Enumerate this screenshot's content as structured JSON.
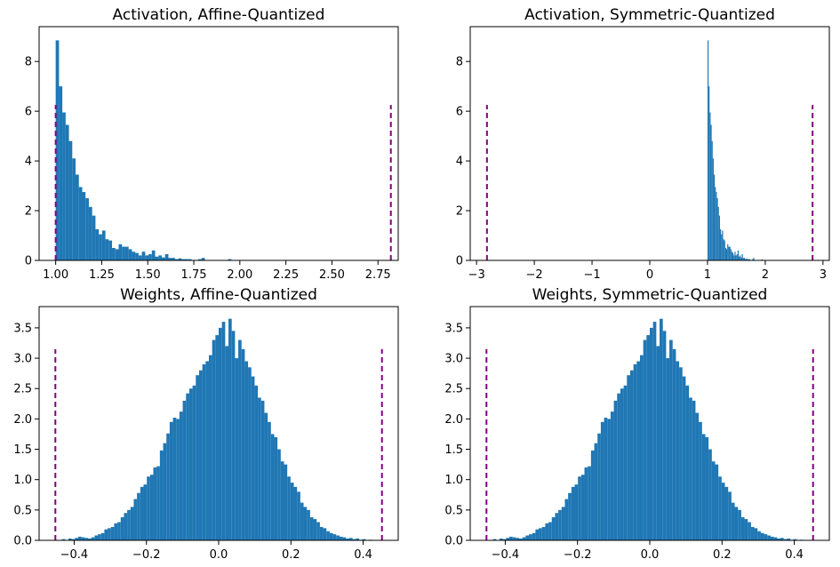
{
  "colors": {
    "bar": "#1f77b4",
    "bound": "#800080"
  },
  "chart_data": [
    {
      "type": "histogram",
      "title": "Activation, Affine-Quantized",
      "xlim": [
        0.91,
        2.86
      ],
      "ylim": [
        0,
        9.4
      ],
      "xticks": [
        1.0,
        1.25,
        1.5,
        1.75,
        2.0,
        2.25,
        2.5,
        2.75
      ],
      "xtick_labels": [
        "1.00",
        "1.25",
        "1.50",
        "1.75",
        "2.00",
        "2.25",
        "2.50",
        "2.75"
      ],
      "yticks": [
        0,
        2,
        4,
        6,
        8
      ],
      "ytick_labels": [
        "0",
        "2",
        "4",
        "6",
        "8"
      ],
      "bins": {
        "start": 1.0,
        "width": 0.018
      },
      "values": [
        8.85,
        7.0,
        5.95,
        5.45,
        4.8,
        4.1,
        3.45,
        2.95,
        2.75,
        2.5,
        2.15,
        1.8,
        1.25,
        1.05,
        1.2,
        0.85,
        0.8,
        0.5,
        0.45,
        0.65,
        0.55,
        0.55,
        0.45,
        0.35,
        0.3,
        0.2,
        0.35,
        0.2,
        0.25,
        0.4,
        0.15,
        0.2,
        0.12,
        0.25,
        0.1,
        0.1,
        0.05,
        0.08,
        0.05,
        0.05,
        0.05,
        0,
        0,
        0.05,
        0.1,
        0,
        0,
        0,
        0,
        0,
        0,
        0,
        0.05,
        0,
        0,
        0,
        0,
        0,
        0,
        0,
        0,
        0,
        0,
        0,
        0,
        0,
        0,
        0,
        0,
        0,
        0,
        0,
        0,
        0,
        0,
        0,
        0,
        0,
        0,
        0,
        0,
        0,
        0,
        0,
        0,
        0,
        0,
        0,
        0,
        0,
        0,
        0,
        0,
        0,
        0,
        0,
        0,
        0,
        0,
        0
      ],
      "bounds": [
        1.0,
        2.82
      ],
      "bound_height": 6.25
    },
    {
      "type": "histogram",
      "title": "Activation, Symmetric-Quantized",
      "xlim": [
        -3.11,
        3.11
      ],
      "ylim": [
        0,
        9.4
      ],
      "xticks": [
        -3,
        -2,
        -1,
        0,
        1,
        2,
        3
      ],
      "xtick_labels": [
        "−3",
        "−2",
        "−1",
        "0",
        "1",
        "2",
        "3"
      ],
      "yticks": [
        0,
        2,
        4,
        6,
        8
      ],
      "ytick_labels": [
        "0",
        "2",
        "4",
        "6",
        "8"
      ],
      "bins": {
        "start": 1.0,
        "width": 0.018
      },
      "values": [
        8.85,
        7.0,
        5.95,
        5.45,
        4.8,
        4.1,
        3.45,
        2.95,
        2.75,
        2.5,
        2.15,
        1.8,
        1.25,
        1.05,
        1.2,
        0.85,
        0.8,
        0.5,
        0.45,
        0.65,
        0.55,
        0.55,
        0.45,
        0.35,
        0.3,
        0.2,
        0.35,
        0.2,
        0.25,
        0.4,
        0.15,
        0.2,
        0.12,
        0.25,
        0.1,
        0.1,
        0.05,
        0.08,
        0.05,
        0.05,
        0.05,
        0,
        0,
        0.05,
        0.1,
        0,
        0,
        0,
        0,
        0,
        0,
        0,
        0.05,
        0,
        0,
        0,
        0,
        0,
        0,
        0,
        0,
        0,
        0,
        0,
        0,
        0,
        0,
        0,
        0,
        0,
        0,
        0,
        0,
        0,
        0,
        0,
        0,
        0,
        0,
        0,
        0,
        0,
        0,
        0,
        0,
        0,
        0,
        0,
        0,
        0,
        0,
        0,
        0,
        0,
        0,
        0,
        0,
        0,
        0,
        0
      ],
      "bounds": [
        -2.82,
        2.82
      ],
      "bound_height": 6.25
    },
    {
      "type": "histogram",
      "title": "Weights, Affine-Quantized",
      "xlim": [
        -0.497,
        0.497
      ],
      "ylim": [
        0,
        3.85
      ],
      "xticks": [
        -0.4,
        -0.2,
        0.0,
        0.2,
        0.4
      ],
      "xtick_labels": [
        "−0.4",
        "−0.2",
        "0.0",
        "0.2",
        "0.4"
      ],
      "yticks": [
        0,
        0.5,
        1.0,
        1.5,
        2.0,
        2.5,
        3.0,
        3.5
      ],
      "ytick_labels": [
        "0.0",
        "0.5",
        "1.0",
        "1.5",
        "2.0",
        "2.5",
        "3.0",
        "3.5"
      ],
      "bins": {
        "start": -0.452,
        "width": 0.00904
      },
      "values": [
        0,
        0,
        0.02,
        0,
        0.03,
        0.02,
        0.04,
        0.06,
        0.05,
        0.04,
        0.03,
        0.05,
        0.08,
        0.1,
        0.12,
        0.18,
        0.2,
        0.22,
        0.28,
        0.3,
        0.38,
        0.45,
        0.5,
        0.55,
        0.68,
        0.78,
        0.88,
        0.92,
        1.05,
        1.08,
        1.2,
        1.22,
        1.48,
        1.6,
        1.76,
        1.95,
        2.02,
        2.0,
        2.12,
        2.3,
        2.42,
        2.5,
        2.55,
        2.72,
        2.8,
        2.9,
        2.95,
        3.05,
        3.3,
        3.38,
        3.5,
        3.6,
        3.2,
        3.65,
        3.45,
        3.0,
        3.3,
        3.15,
        2.95,
        2.85,
        2.7,
        2.55,
        2.35,
        2.3,
        2.1,
        1.95,
        1.75,
        1.7,
        1.5,
        1.3,
        1.25,
        1.05,
        0.95,
        0.88,
        0.8,
        0.62,
        0.55,
        0.5,
        0.38,
        0.35,
        0.3,
        0.22,
        0.2,
        0.15,
        0.12,
        0.1,
        0.08,
        0.06,
        0.05,
        0.03,
        0.04,
        0.02,
        0.03,
        0.01,
        0.02,
        0,
        0.01,
        0,
        0,
        0
      ],
      "bounds": [
        -0.452,
        0.452
      ],
      "bound_height": 3.15
    },
    {
      "type": "histogram",
      "title": "Weights, Symmetric-Quantized",
      "xlim": [
        -0.497,
        0.497
      ],
      "ylim": [
        0,
        3.85
      ],
      "xticks": [
        -0.4,
        -0.2,
        0.0,
        0.2,
        0.4
      ],
      "xtick_labels": [
        "−0.4",
        "−0.2",
        "0.0",
        "0.2",
        "0.4"
      ],
      "yticks": [
        0,
        0.5,
        1.0,
        1.5,
        2.0,
        2.5,
        3.0,
        3.5
      ],
      "ytick_labels": [
        "0.0",
        "0.5",
        "1.0",
        "1.5",
        "2.0",
        "2.5",
        "3.0",
        "3.5"
      ],
      "bins": {
        "start": -0.452,
        "width": 0.00904
      },
      "values": [
        0,
        0,
        0.02,
        0,
        0.03,
        0.02,
        0.04,
        0.06,
        0.05,
        0.04,
        0.03,
        0.05,
        0.08,
        0.1,
        0.12,
        0.18,
        0.2,
        0.22,
        0.28,
        0.3,
        0.38,
        0.45,
        0.5,
        0.55,
        0.68,
        0.78,
        0.88,
        0.92,
        1.05,
        1.08,
        1.2,
        1.22,
        1.48,
        1.6,
        1.76,
        1.95,
        2.02,
        2.0,
        2.12,
        2.3,
        2.42,
        2.5,
        2.55,
        2.72,
        2.8,
        2.9,
        2.95,
        3.05,
        3.3,
        3.38,
        3.5,
        3.6,
        3.2,
        3.65,
        3.45,
        3.0,
        3.3,
        3.15,
        2.95,
        2.85,
        2.7,
        2.55,
        2.35,
        2.3,
        2.1,
        1.95,
        1.75,
        1.7,
        1.5,
        1.3,
        1.25,
        1.05,
        0.95,
        0.88,
        0.8,
        0.62,
        0.55,
        0.5,
        0.38,
        0.35,
        0.3,
        0.22,
        0.2,
        0.15,
        0.12,
        0.1,
        0.08,
        0.06,
        0.05,
        0.03,
        0.04,
        0.02,
        0.03,
        0.01,
        0.02,
        0,
        0.01,
        0,
        0,
        0
      ],
      "bounds": [
        -0.452,
        0.452
      ],
      "bound_height": 3.15
    }
  ]
}
